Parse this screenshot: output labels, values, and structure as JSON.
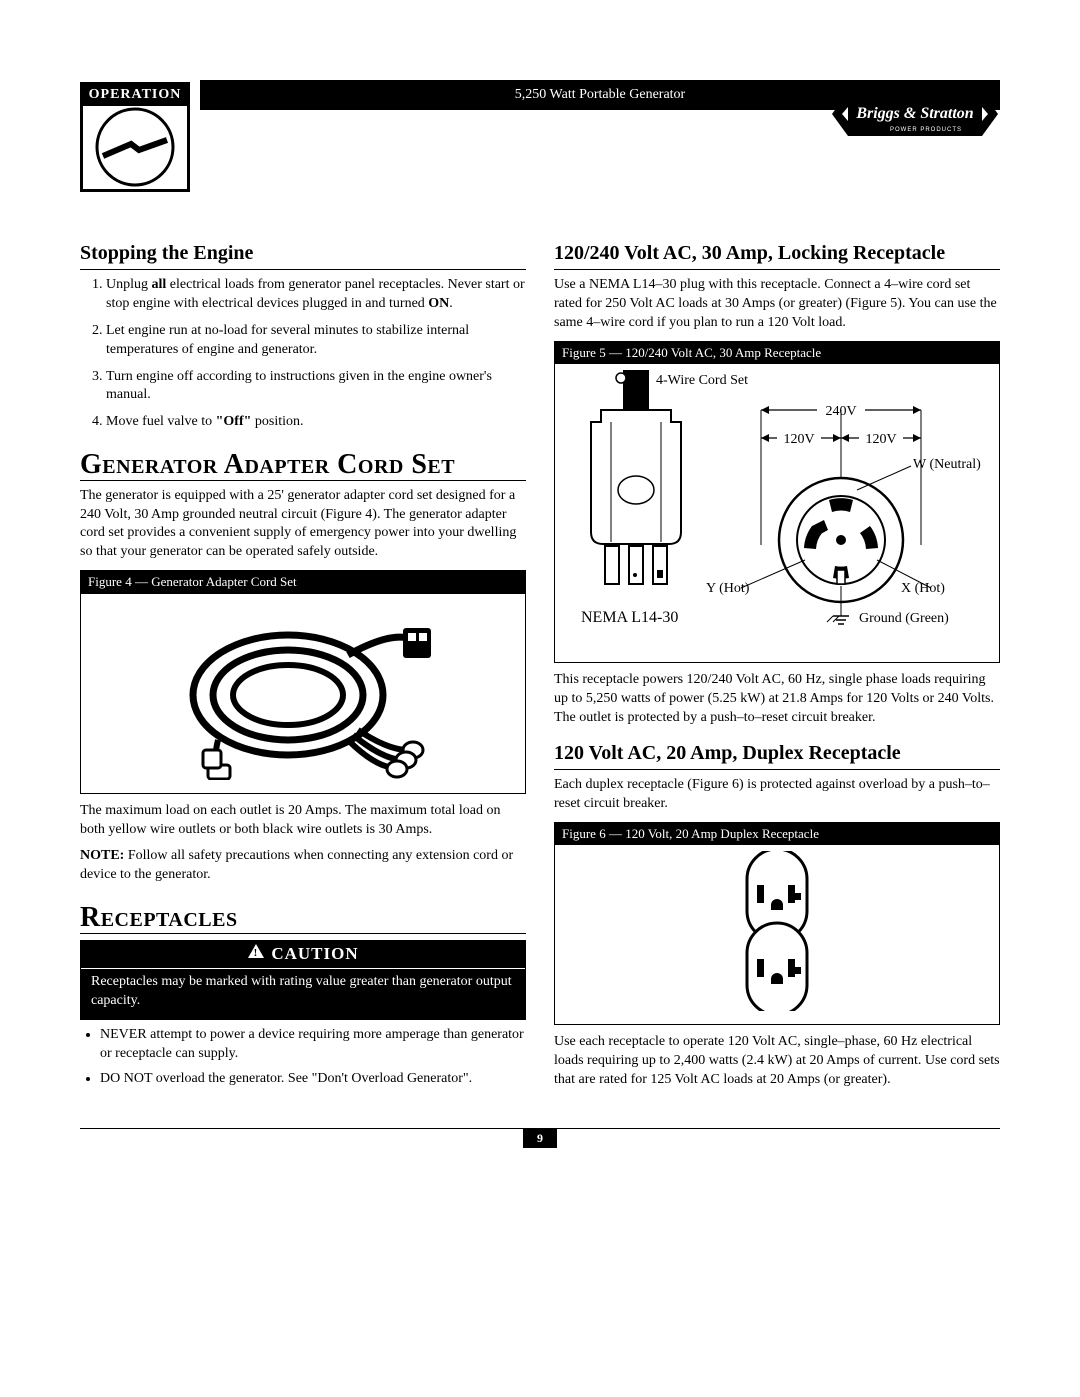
{
  "header": {
    "title": "5,250 Watt Portable Generator",
    "badge_label": "OPERATION",
    "brand_top": "Briggs & Stratton",
    "brand_sub": "POWER PRODUCTS"
  },
  "left": {
    "stopping_heading": "Stopping the Engine",
    "steps": [
      "Unplug <strong>all</strong> electrical loads from generator panel receptacles. Never start or stop engine with electrical devices plugged in and turned <strong>ON</strong>.",
      "Let engine run at no-load for several minutes to stabilize internal temperatures of engine and generator.",
      "Turn engine off according to instructions given in the engine owner's manual.",
      "Move fuel valve to <strong>\"Off\"</strong> position."
    ],
    "cordset_heading": "Generator Adapter Cord Set",
    "cordset_p1": "The generator is equipped with a 25' generator adapter cord set designed for a 240 Volt, 30 Amp grounded neutral circuit (Figure 4). The generator adapter cord set provides a convenient supply of emergency power into your dwelling so that your generator can be operated safely outside.",
    "fig4_caption": "Figure 4 — Generator Adapter Cord Set",
    "cordset_p2": "The maximum load on each outlet is 20 Amps. The maximum total load on both yellow wire outlets or both black wire outlets is 30 Amps.",
    "cordset_note": "<strong>NOTE:</strong> Follow all safety precautions when connecting any extension cord or device to the generator.",
    "receptacles_heading": "Receptacles",
    "caution_label": "CAUTION",
    "caution_body": "Receptacles may be marked with rating value greater than generator output capacity.",
    "caution_bullets": [
      "NEVER attempt to power a device requiring more amperage than generator or receptacle can supply.",
      "DO NOT overload the generator. See \"Don't Overload Generator\"."
    ]
  },
  "right": {
    "locking_heading": "120/240 Volt AC, 30 Amp, Locking Receptacle",
    "locking_p1": "Use a NEMA L14–30 plug with this receptacle. Connect a 4–wire cord set rated for 250 Volt AC loads at 30 Amps (or greater) (Figure 5). You can use the same 4–wire cord if you plan to run a 120 Volt load.",
    "fig5_caption": "Figure 5 — 120/240 Volt AC, 30 Amp Receptacle",
    "fig5_labels": {
      "cord": "4-Wire Cord Set",
      "v240": "240V",
      "v120a": "120V",
      "v120b": "120V",
      "w": "W (Neutral)",
      "y": "Y (Hot)",
      "x": "X (Hot)",
      "nema": "NEMA L14-30",
      "ground": "Ground (Green)"
    },
    "locking_p2": "This receptacle powers 120/240 Volt AC, 60 Hz, single phase loads requiring up to 5,250 watts of power (5.25 kW) at 21.8 Amps for 120 Volts or 240 Volts. The outlet is protected by a push–to–reset circuit breaker.",
    "duplex_heading": "120 Volt AC, 20 Amp, Duplex Receptacle",
    "duplex_p1": "Each duplex receptacle (Figure 6) is protected against overload by a push–to–reset circuit breaker.",
    "fig6_caption": "Figure 6 — 120 Volt, 20 Amp Duplex Receptacle",
    "duplex_p2": "Use each receptacle to operate 120 Volt AC, single–phase, 60 Hz electrical loads requiring up to 2,400 watts (2.4 kW) at 20 Amps of current. Use cord sets that are rated for 125 Volt AC loads at 20 Amps (or greater)."
  },
  "footer": {
    "page": "9"
  }
}
